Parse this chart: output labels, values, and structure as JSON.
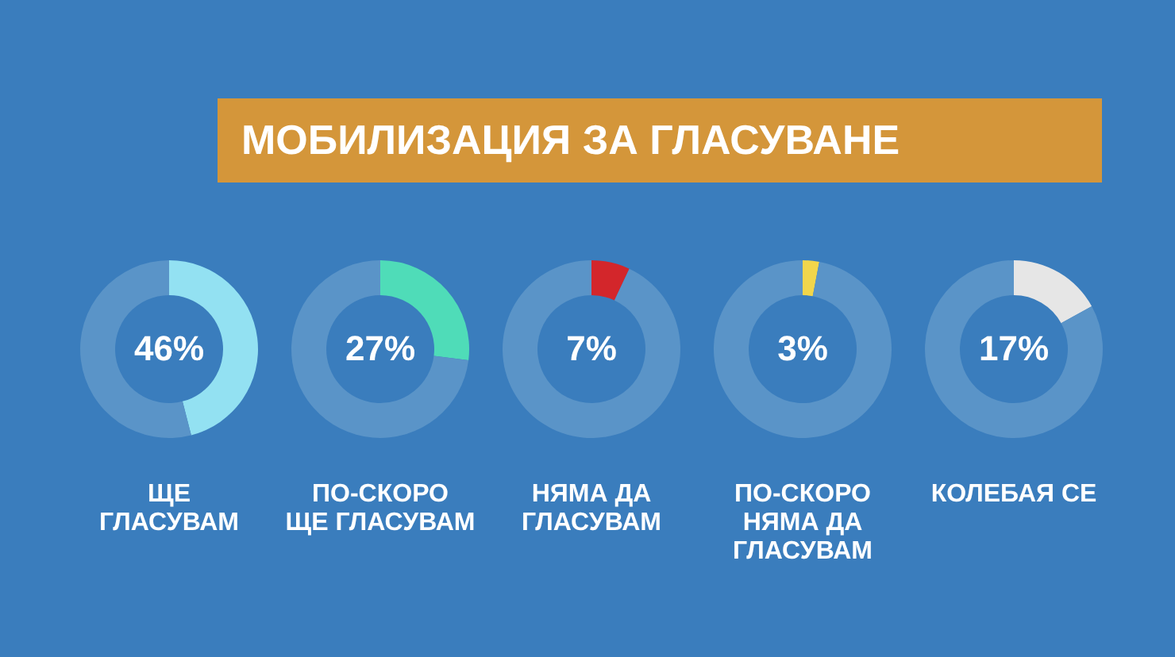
{
  "chart_data": [
    {
      "type": "other",
      "title": "МОБИЛИЗАЦИЯ ЗА ГЛАСУВАНЕ"
    },
    {
      "type": "donut",
      "title": "ЩЕ\nГЛАСУВАМ",
      "categories": [
        null,
        null
      ],
      "values": [
        46,
        54
      ],
      "colors": [
        "#93e1f2",
        "#5a94c8"
      ],
      "annotations": [
        "46%"
      ]
    },
    {
      "type": "donut",
      "title": "ПО-СКОРО\nЩЕ ГЛАСУВАМ",
      "categories": [
        null,
        null
      ],
      "values": [
        27,
        73
      ],
      "colors": [
        "#4fdcb8",
        "#5a94c8"
      ],
      "annotations": [
        "27%"
      ]
    },
    {
      "type": "donut",
      "title": "НЯМА ДА\nГЛАСУВАМ",
      "categories": [
        null,
        null
      ],
      "values": [
        7,
        93
      ],
      "colors": [
        "#d3262b",
        "#5a94c8"
      ],
      "annotations": [
        "7%"
      ]
    },
    {
      "type": "donut",
      "title": "ПО-СКОРО\nНЯМА ДА\nГЛАСУВАМ",
      "categories": [
        null,
        null
      ],
      "values": [
        3,
        97
      ],
      "colors": [
        "#f2d64b",
        "#5a94c8"
      ],
      "annotations": [
        "3%"
      ]
    },
    {
      "type": "donut",
      "title": "КОЛЕБАЯ СЕ",
      "categories": [
        null,
        null
      ],
      "values": [
        17,
        83
      ],
      "colors": [
        "#e6e6e6",
        "#5a94c8"
      ],
      "annotations": [
        "17%"
      ]
    }
  ]
}
